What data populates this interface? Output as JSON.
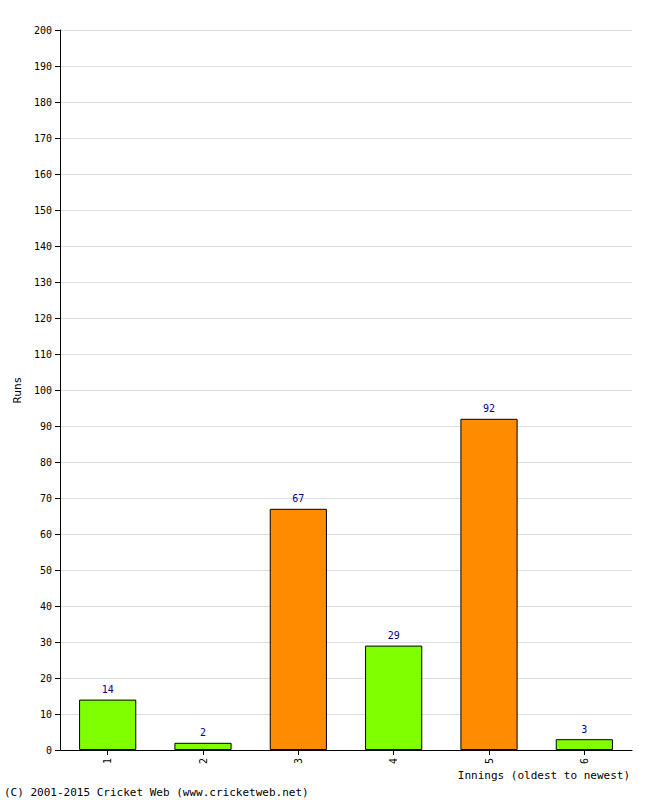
{
  "chart_data": {
    "type": "bar",
    "x_label": "Innings (oldest to newest)",
    "y_label": "Runs",
    "categories": [
      "1",
      "2",
      "3",
      "4",
      "5",
      "6"
    ],
    "values": [
      14,
      2,
      67,
      29,
      92,
      3
    ],
    "colors": [
      "#80ff00",
      "#80ff00",
      "#ff8c00",
      "#80ff00",
      "#ff8c00",
      "#80ff00"
    ],
    "ylim": [
      0,
      200
    ],
    "yticks": [
      0,
      10,
      20,
      30,
      40,
      50,
      60,
      70,
      80,
      90,
      100,
      110,
      120,
      130,
      140,
      150,
      160,
      170,
      180,
      190,
      200
    ],
    "grid": true,
    "data_labels": true,
    "annotations": [
      "(C) 2001-2015 Cricket Web (www.cricketweb.net)"
    ]
  }
}
